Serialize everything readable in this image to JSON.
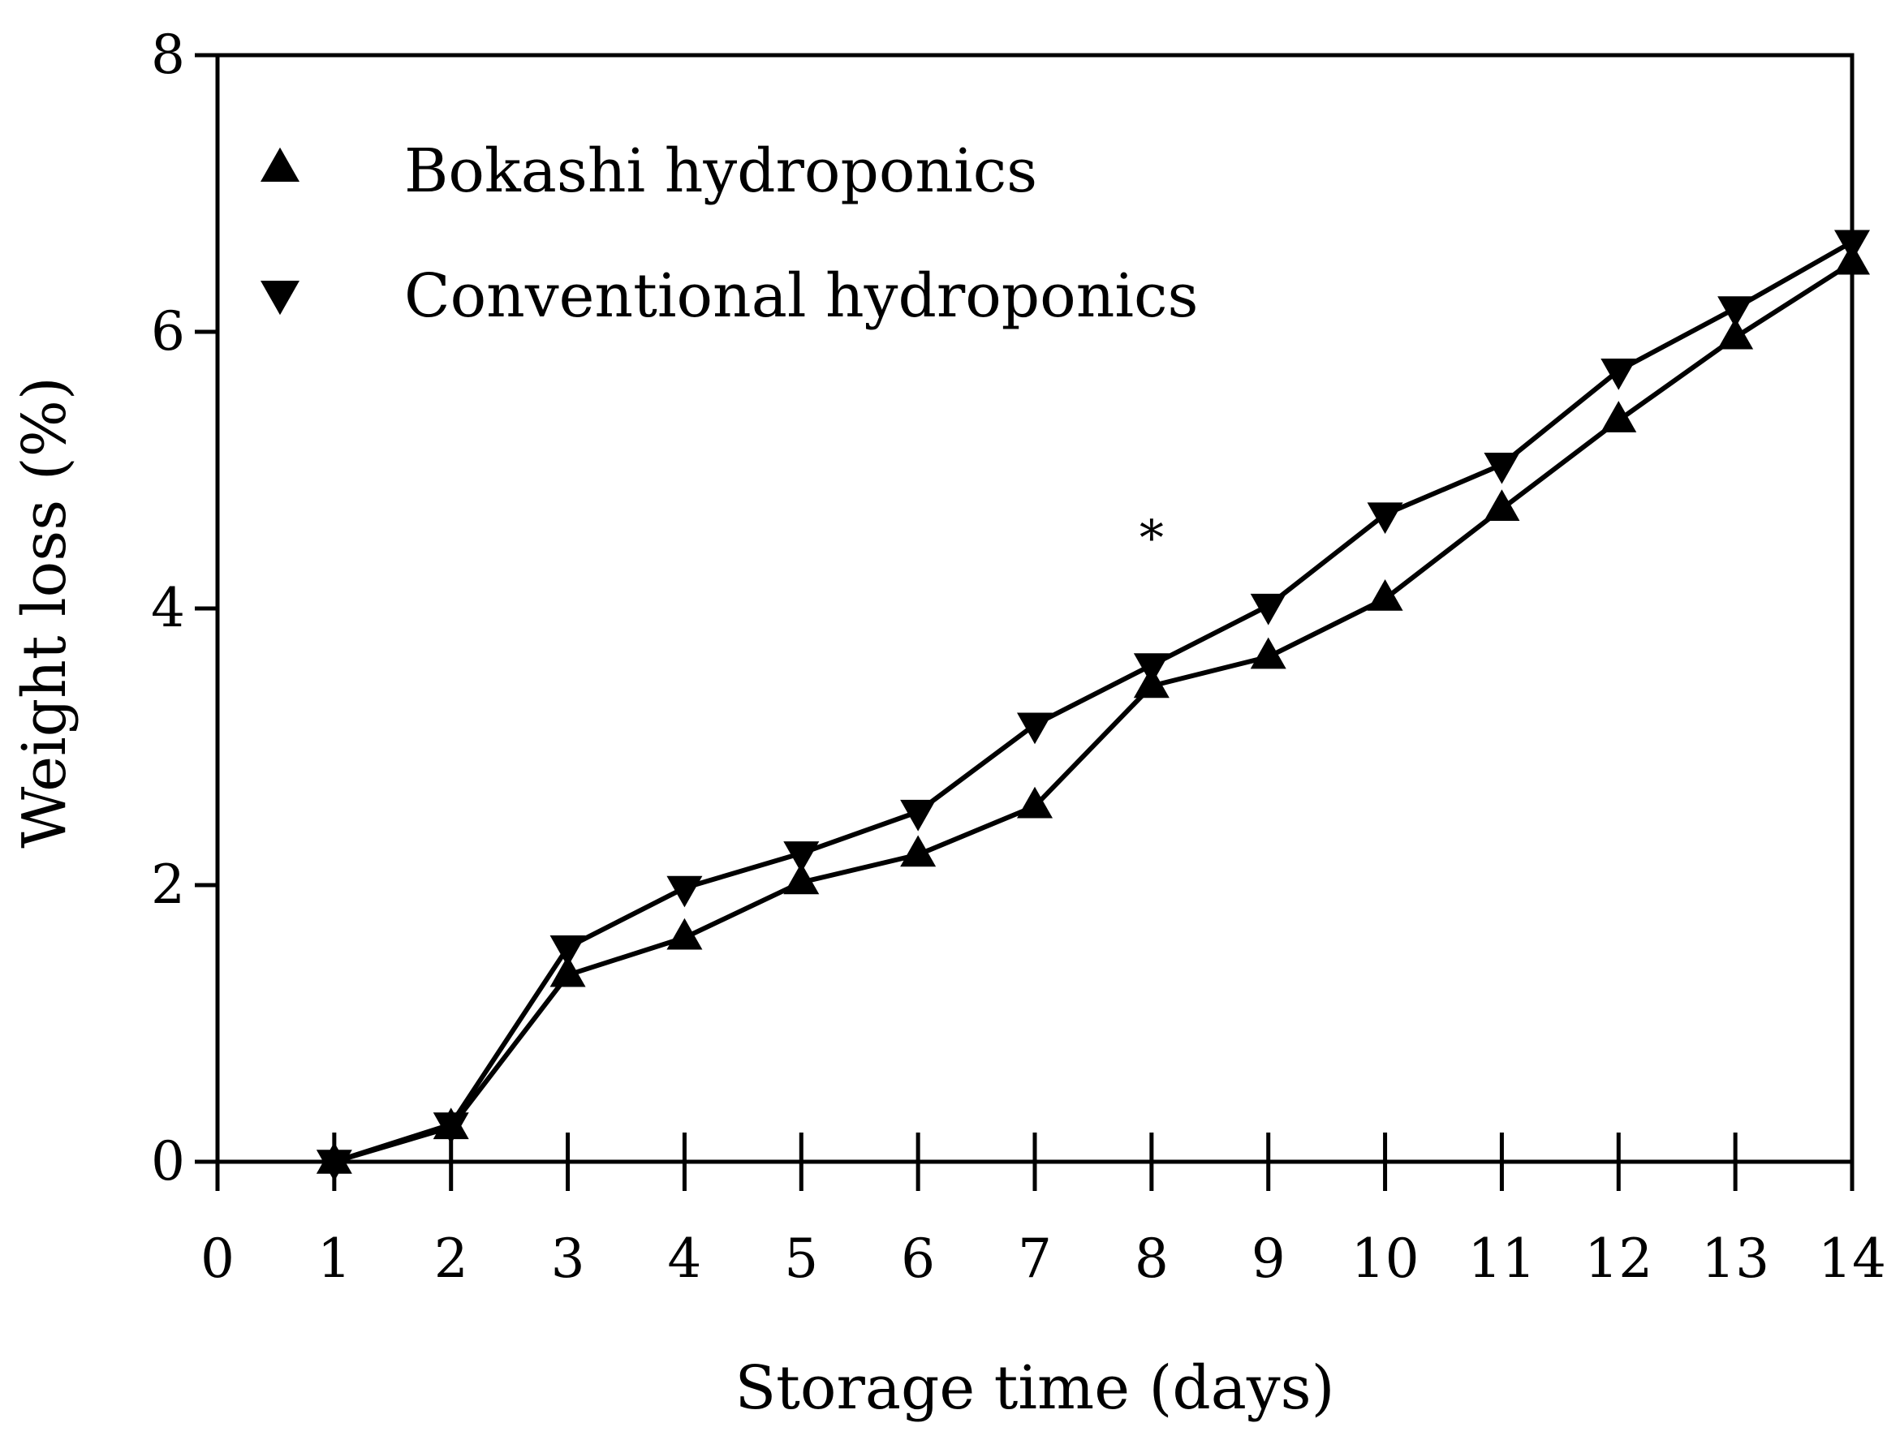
{
  "chart_data": {
    "type": "line",
    "title": "",
    "xlabel": "Storage time (days)",
    "ylabel": "Weight loss (%)",
    "xlim": [
      0,
      14
    ],
    "ylim": [
      0,
      8
    ],
    "xticks": [
      "0",
      "1",
      "2",
      "3",
      "4",
      "5",
      "6",
      "7",
      "8",
      "9",
      "10",
      "11",
      "12",
      "13",
      "14"
    ],
    "yticks": [
      "0",
      "2",
      "4",
      "6",
      "8"
    ],
    "grid": false,
    "legend_position": "top-left",
    "x": [
      1,
      2,
      3,
      4,
      5,
      6,
      7,
      8,
      9,
      10,
      11,
      12,
      13,
      14
    ],
    "series": [
      {
        "name": "Bokashi hydroponics",
        "marker": "triangle-up",
        "color": "#000000",
        "values": [
          0.0,
          0.25,
          1.35,
          1.62,
          2.02,
          2.22,
          2.57,
          3.44,
          3.65,
          4.07,
          4.72,
          5.36,
          5.96,
          6.5
        ]
      },
      {
        "name": "Conventional hydroponics",
        "marker": "triangle-down",
        "color": "#000000",
        "values": [
          0.0,
          0.27,
          1.55,
          1.98,
          2.23,
          2.53,
          3.16,
          3.59,
          4.02,
          4.68,
          5.04,
          5.72,
          6.17,
          6.65
        ]
      }
    ],
    "annotations": [
      {
        "text": "*",
        "x": 8,
        "y": 4.6
      }
    ]
  }
}
